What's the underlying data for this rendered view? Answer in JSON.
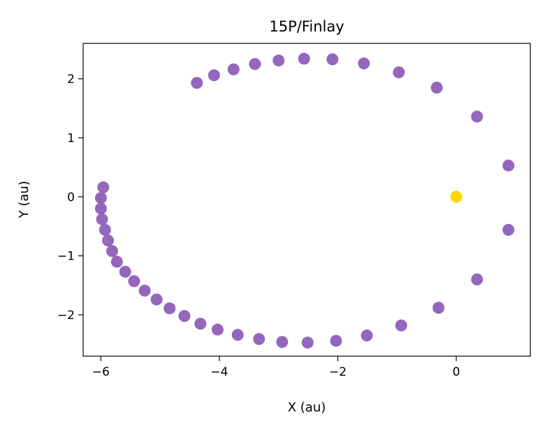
{
  "chart_data": {
    "type": "scatter",
    "title": "15P/Finlay",
    "xlabel": "X (au)",
    "ylabel": "Y (au)",
    "xlim": [
      -6.3,
      1.25
    ],
    "ylim": [
      -2.7,
      2.6
    ],
    "xticks": [
      -6,
      -4,
      -2,
      0
    ],
    "xtick_labels": [
      "−6",
      "−4",
      "−2",
      "0"
    ],
    "yticks": [
      -2,
      -1,
      0,
      1,
      2
    ],
    "ytick_labels": [
      "−2",
      "−1",
      "0",
      "1",
      "2"
    ],
    "grid": false,
    "series": [
      {
        "color": "#9467bd",
        "points": [
          [
            -4.38,
            1.93
          ],
          [
            -4.09,
            2.06
          ],
          [
            -3.76,
            2.16
          ],
          [
            -3.4,
            2.25
          ],
          [
            -3.0,
            2.31
          ],
          [
            -2.57,
            2.34
          ],
          [
            -2.09,
            2.33
          ],
          [
            -1.56,
            2.26
          ],
          [
            -0.97,
            2.11
          ],
          [
            -0.33,
            1.85
          ],
          [
            0.35,
            1.36
          ],
          [
            0.88,
            0.53
          ],
          [
            0.88,
            -0.56
          ],
          [
            0.35,
            -1.4
          ],
          [
            -0.3,
            -1.88
          ],
          [
            -0.93,
            -2.18
          ],
          [
            -1.51,
            -2.35
          ],
          [
            -2.03,
            -2.44
          ],
          [
            -2.51,
            -2.47
          ],
          [
            -2.94,
            -2.46
          ],
          [
            -3.33,
            -2.41
          ],
          [
            -3.69,
            -2.34
          ],
          [
            -4.03,
            -2.25
          ],
          [
            -4.32,
            -2.15
          ],
          [
            -4.59,
            -2.02
          ],
          [
            -4.84,
            -1.89
          ],
          [
            -5.06,
            -1.74
          ],
          [
            -5.26,
            -1.59
          ],
          [
            -5.44,
            -1.43
          ],
          [
            -5.59,
            -1.27
          ],
          [
            -5.73,
            -1.1
          ],
          [
            -5.81,
            -0.92
          ],
          [
            -5.88,
            -0.74
          ],
          [
            -5.93,
            -0.56
          ],
          [
            -5.98,
            -0.38
          ],
          [
            -6.0,
            -0.2
          ],
          [
            -6.0,
            -0.02
          ],
          [
            -5.96,
            0.16
          ]
        ]
      },
      {
        "color": "#ffd700",
        "points": [
          [
            0.0,
            0.0
          ]
        ]
      }
    ]
  }
}
